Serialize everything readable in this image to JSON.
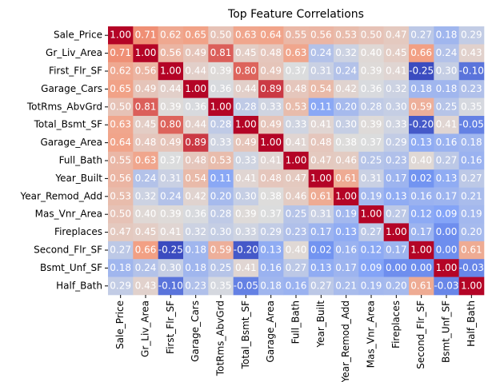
{
  "chart_data": {
    "type": "heatmap",
    "title": "Top Feature Correlations",
    "categories": [
      "Sale_Price",
      "Gr_Liv_Area",
      "First_Flr_SF",
      "Garage_Cars",
      "TotRms_AbvGrd",
      "Total_Bsmt_SF",
      "Garage_Area",
      "Full_Bath",
      "Year_Built",
      "Year_Remod_Add",
      "Mas_Vnr_Area",
      "Fireplaces",
      "Second_Flr_SF",
      "Bsmt_Unf_SF",
      "Half_Bath"
    ],
    "values": [
      [
        1,
        0.71,
        0.62,
        0.65,
        0.5,
        0.63,
        0.64,
        0.55,
        0.56,
        0.53,
        0.5,
        0.47,
        0.27,
        0.18,
        0.29
      ],
      [
        0.71,
        1,
        0.56,
        0.49,
        0.81,
        0.45,
        0.48,
        0.63,
        0.24,
        0.32,
        0.4,
        0.45,
        0.66,
        0.24,
        0.43
      ],
      [
        0.62,
        0.56,
        1,
        0.44,
        0.39,
        0.8,
        0.49,
        0.37,
        0.31,
        0.24,
        0.39,
        0.41,
        -0.25,
        0.3,
        -0.1
      ],
      [
        0.65,
        0.49,
        0.44,
        1,
        0.36,
        0.44,
        0.89,
        0.48,
        0.54,
        0.42,
        0.36,
        0.32,
        0.18,
        0.18,
        0.23
      ],
      [
        0.5,
        0.81,
        0.39,
        0.36,
        1,
        0.28,
        0.33,
        0.53,
        0.11,
        0.2,
        0.28,
        0.3,
        0.59,
        0.25,
        0.35
      ],
      [
        0.63,
        0.45,
        0.8,
        0.44,
        0.28,
        1,
        0.49,
        0.33,
        0.41,
        0.3,
        0.39,
        0.33,
        -0.2,
        0.41,
        -0.05
      ],
      [
        0.64,
        0.48,
        0.49,
        0.89,
        0.33,
        0.49,
        1,
        0.41,
        0.48,
        0.38,
        0.37,
        0.29,
        0.13,
        0.16,
        0.18
      ],
      [
        0.55,
        0.63,
        0.37,
        0.48,
        0.53,
        0.33,
        0.41,
        1,
        0.47,
        0.46,
        0.25,
        0.23,
        0.4,
        0.27,
        0.16
      ],
      [
        0.56,
        0.24,
        0.31,
        0.54,
        0.11,
        0.41,
        0.48,
        0.47,
        1,
        0.61,
        0.31,
        0.17,
        0.02,
        0.13,
        0.27
      ],
      [
        0.53,
        0.32,
        0.24,
        0.42,
        0.2,
        0.3,
        0.38,
        0.46,
        0.61,
        1,
        0.19,
        0.13,
        0.16,
        0.17,
        0.21
      ],
      [
        0.5,
        0.4,
        0.39,
        0.36,
        0.28,
        0.39,
        0.37,
        0.25,
        0.31,
        0.19,
        1,
        0.27,
        0.12,
        0.09,
        0.19
      ],
      [
        0.47,
        0.45,
        0.41,
        0.32,
        0.3,
        0.33,
        0.29,
        0.23,
        0.17,
        0.13,
        0.27,
        1,
        0.17,
        0,
        0.2
      ],
      [
        0.27,
        0.66,
        -0.25,
        0.18,
        0.59,
        -0.2,
        0.13,
        0.4,
        0.02,
        0.16,
        0.12,
        0.17,
        1,
        0,
        0.61
      ],
      [
        0.18,
        0.24,
        0.3,
        0.18,
        0.25,
        0.41,
        0.16,
        0.27,
        0.13,
        0.17,
        0.09,
        0,
        0,
        1,
        -0.03
      ],
      [
        0.29,
        0.43,
        -0.1,
        0.23,
        0.35,
        -0.05,
        0.18,
        0.16,
        0.27,
        0.21,
        0.19,
        0.2,
        0.61,
        -0.03,
        1
      ]
    ],
    "value_labels": [
      [
        "1.00",
        "0.71",
        "0.62",
        "0.65",
        "0.50",
        "0.63",
        "0.64",
        "0.55",
        "0.56",
        "0.53",
        "0.50",
        "0.47",
        "0.27",
        "0.18",
        "0.29"
      ],
      [
        "0.71",
        "1.00",
        "0.56",
        "0.49",
        "0.81",
        "0.45",
        "0.48",
        "0.63",
        "0.24",
        "0.32",
        "0.40",
        "0.45",
        "0.66",
        "0.24",
        "0.43"
      ],
      [
        "0.62",
        "0.56",
        "1.00",
        "0.44",
        "0.39",
        "0.80",
        "0.49",
        "0.37",
        "0.31",
        "0.24",
        "0.39",
        "0.41",
        "-0.25",
        "0.30",
        "-0.10"
      ],
      [
        "0.65",
        "0.49",
        "0.44",
        "1.00",
        "0.36",
        "0.44",
        "0.89",
        "0.48",
        "0.54",
        "0.42",
        "0.36",
        "0.32",
        "0.18",
        "0.18",
        "0.23"
      ],
      [
        "0.50",
        "0.81",
        "0.39",
        "0.36",
        "1.00",
        "0.28",
        "0.33",
        "0.53",
        "0.11",
        "0.20",
        "0.28",
        "0.30",
        "0.59",
        "0.25",
        "0.35"
      ],
      [
        "0.63",
        "0.45",
        "0.80",
        "0.44",
        "0.28",
        "1.00",
        "0.49",
        "0.33",
        "0.41",
        "0.30",
        "0.39",
        "0.33",
        "-0.20",
        "0.41",
        "-0.05"
      ],
      [
        "0.64",
        "0.48",
        "0.49",
        "0.89",
        "0.33",
        "0.49",
        "1.00",
        "0.41",
        "0.48",
        "0.38",
        "0.37",
        "0.29",
        "0.13",
        "0.16",
        "0.18"
      ],
      [
        "0.55",
        "0.63",
        "0.37",
        "0.48",
        "0.53",
        "0.33",
        "0.41",
        "1.00",
        "0.47",
        "0.46",
        "0.25",
        "0.23",
        "0.40",
        "0.27",
        "0.16"
      ],
      [
        "0.56",
        "0.24",
        "0.31",
        "0.54",
        "0.11",
        "0.41",
        "0.48",
        "0.47",
        "1.00",
        "0.61",
        "0.31",
        "0.17",
        "0.02",
        "0.13",
        "0.27"
      ],
      [
        "0.53",
        "0.32",
        "0.24",
        "0.42",
        "0.20",
        "0.30",
        "0.38",
        "0.46",
        "0.61",
        "1.00",
        "0.19",
        "0.13",
        "0.16",
        "0.17",
        "0.21"
      ],
      [
        "0.50",
        "0.40",
        "0.39",
        "0.36",
        "0.28",
        "0.39",
        "0.37",
        "0.25",
        "0.31",
        "0.19",
        "1.00",
        "0.27",
        "0.12",
        "0.09",
        "0.19"
      ],
      [
        "0.47",
        "0.45",
        "0.41",
        "0.32",
        "0.30",
        "0.33",
        "0.29",
        "0.23",
        "0.17",
        "0.13",
        "0.27",
        "1.00",
        "0.17",
        "0.00",
        "0.20"
      ],
      [
        "0.27",
        "0.66",
        "-0.25",
        "0.18",
        "0.59",
        "-0.20",
        "0.13",
        "0.40",
        "0.02",
        "0.16",
        "0.12",
        "0.17",
        "1.00",
        "0.00",
        "0.61"
      ],
      [
        "0.18",
        "0.24",
        "0.30",
        "0.18",
        "0.25",
        "0.41",
        "0.16",
        "0.27",
        "0.13",
        "0.17",
        "0.09",
        "0.00",
        "0.00",
        "1.00",
        "-0.03"
      ],
      [
        "0.29",
        "0.43",
        "-0.10",
        "0.23",
        "0.35",
        "-0.05",
        "0.18",
        "0.16",
        "0.27",
        "0.21",
        "0.19",
        "0.20",
        "0.61",
        "-0.03",
        "1.00"
      ]
    ],
    "vlim": [
      -0.25,
      1
    ],
    "colormap": "coolwarm"
  }
}
